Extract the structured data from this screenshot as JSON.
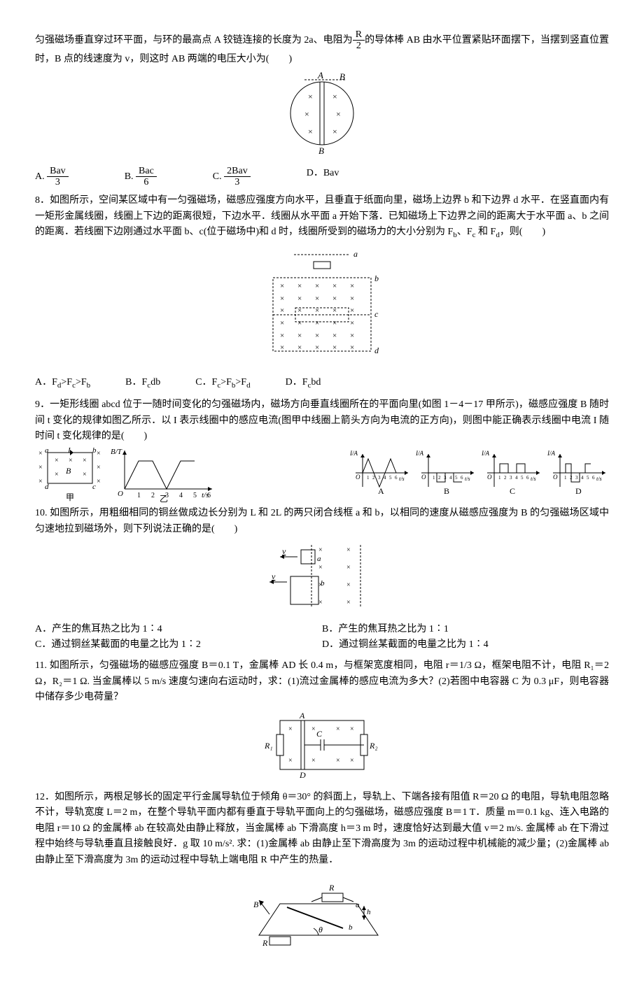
{
  "q7": {
    "text_before": "匀强磁场垂直穿过环平面，与环的最高点 A 铰链连接的长度为 2a、电阻为",
    "frac_num": "R",
    "frac_den": "2",
    "text_after": "的导体棒 AB 由水平位置紧贴环面摆下，当摆到竖直位置时，B 点的线速度为 v，则这时 AB 两端的电压大小为(　　)",
    "optA_num": "Bav",
    "optA_den": "3",
    "optB_num": "Bac",
    "optB_den": "6",
    "optC_num": "2Bav",
    "optC_den": "3",
    "optD": "D．Bav",
    "fig": {
      "labelA": "A",
      "labelB": "B",
      "stroke": "#000"
    }
  },
  "q8": {
    "text": "8．如图所示，空间某区域中有一匀强磁场，磁感应强度方向水平，且垂直于纸面向里，磁场上边界 b 和下边界 d 水平．在竖直面内有一矩形金属线圈，线圈上下边的距离很短，下边水平．线圈从水平面 a 开始下落．已知磁场上下边界之间的距离大于水平面 a、b 之间的距离．若线圈下边刚通过水平面 b、c(位于磁场中)和 d 时，线圈所受到的磁场力的大小分别为 F_b、F_c 和 F_d，则(　　)",
    "optA": "A．F_d>F_c>F_b",
    "optB": "B．F_c<F_d<F_b",
    "optC": "C．F_c>F_b>F_d",
    "optD": "D．F_c<F_b<F_d",
    "fig": {
      "la": "a",
      "lb": "b",
      "lc": "c",
      "ld": "d"
    }
  },
  "q9": {
    "text": "9．一矩形线圈 abcd 位于一随时间变化的匀强磁场内，磁场方向垂直线圈所在的平面向里(如图 1－4－17 甲所示)，磁感应强度 B 随时间 t 变化的规律如图乙所示．以 I 表示线圈中的感应电流(图甲中线圈上箭头方向为电流的正方向)，则图中能正确表示线圈中电流 I 随时间 t 变化规律的是(　　)",
    "fig1": {
      "a": "a",
      "b": "b",
      "c": "c",
      "d": "d",
      "I": "I",
      "B": "B",
      "cap": "甲"
    },
    "fig2": {
      "yl": "B/T",
      "xl": "t/s",
      "ticks": [
        "1",
        "2",
        "3",
        "4",
        "5",
        "6"
      ],
      "cap": "乙",
      "O": "O"
    },
    "choices": {
      "yl": "I/A",
      "xl": "t/s",
      "O": "O",
      "ticks": [
        "1",
        "2",
        "3",
        "4",
        "5",
        "6"
      ],
      "labels": [
        "A",
        "B",
        "C",
        "D"
      ]
    }
  },
  "q10": {
    "text": "10. 如图所示，用粗细相同的铜丝做成边长分别为 L 和 2L 的两只闭合线框 a 和 b，以相同的速度从磁感应强度为 B 的匀强磁场区域中匀速地拉到磁场外，则下列说法正确的是(　　)",
    "optA": "A．产生的焦耳热之比为 1∶4",
    "optB": "B．产生的焦耳热之比为 1∶1",
    "optC": "C．通过铜丝某截面的电量之比为 1∶2",
    "optD": "D．通过铜丝某截面的电量之比为 1∶4",
    "fig": {
      "a": "a",
      "b": "b",
      "v": "v"
    }
  },
  "q11": {
    "text": "11. 如图所示，匀强磁场的磁感应强度 B＝0.1 T，金属棒 AD 长 0.4 m，与框架宽度相同，电阻 r＝1/3 Ω，框架电阻不计，电阻 R₁＝2 Ω，R₂＝1 Ω. 当金属棒以 5 m/s 速度匀速向右运动时，求：(1)流过金属棒的感应电流为多大？(2)若图中电容器 C 为 0.3 μF，则电容器中储存多少电荷量？",
    "fig": {
      "A": "A",
      "D": "D",
      "C": "C",
      "R1": "R₁",
      "R2": "R₂"
    }
  },
  "q12": {
    "text": "12．如图所示，两根足够长的固定平行金属导轨位于倾角 θ＝30° 的斜面上，导轨上、下端各接有阻值 R＝20 Ω 的电阻，导轨电阻忽略不计，导轨宽度 L＝2 m，在整个导轨平面内都有垂直于导轨平面向上的匀强磁场，磁感应强度 B＝1 T．质量 m＝0.1 kg、连入电路的电阻 r＝10 Ω 的金属棒 ab 在较高处由静止释放，当金属棒 ab 下滑高度 h＝3 m 时，速度恰好达到最大值 v＝2 m/s. 金属棒 ab 在下滑过程中始终与导轨垂直且接触良好．g 取 10 m/s². 求：(1)金属棒 ab 由静止至下滑高度为 3m 的运动过程中机械能的减少量；(2)金属棒 ab 由静止至下滑高度为 3m 的运动过程中导轨上端电阻 R 中产生的热量．",
    "fig": {
      "B": "B",
      "R": "R",
      "a": "a",
      "b": "b",
      "h": "h",
      "th": "θ"
    }
  }
}
